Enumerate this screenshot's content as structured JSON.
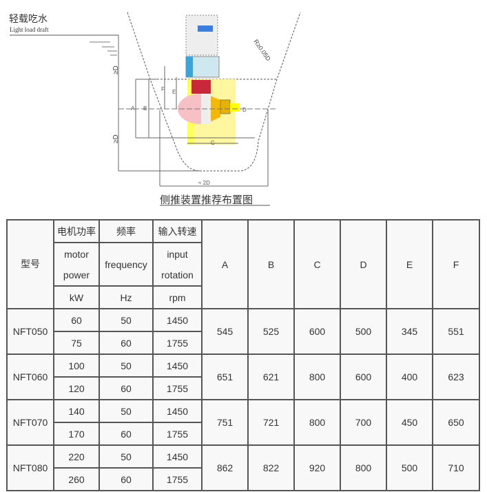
{
  "diagram": {
    "label_cn": "轻载吃水",
    "label_en": "Light load draft",
    "caption": "侧推装置推荐布置图",
    "dim_2d": "≈ 2D",
    "dim_d_top": "≥D",
    "dim_d_bottom": "≥D",
    "radius": "R≥0.05D",
    "dims": [
      "A",
      "B",
      "C",
      "D",
      "E",
      "F"
    ]
  },
  "table": {
    "header": {
      "model": "型号",
      "power_cn": "电机功率",
      "power_en_1": "motor",
      "power_en_2": "power",
      "power_unit": "kW",
      "freq_cn": "频率",
      "freq_en": "frequency",
      "freq_unit": "Hz",
      "speed_cn": "输入转速",
      "speed_en_1": "input",
      "speed_en_2": "rotation",
      "speed_unit": "rpm",
      "cols": [
        "A",
        "B",
        "C",
        "D",
        "E",
        "F"
      ]
    },
    "rows": [
      {
        "model": "NFT050",
        "variants": [
          {
            "power": "60",
            "freq": "50",
            "rpm": "1450"
          },
          {
            "power": "75",
            "freq": "60",
            "rpm": "1755"
          }
        ],
        "dims": [
          "545",
          "525",
          "600",
          "500",
          "345",
          "551"
        ]
      },
      {
        "model": "NFT060",
        "variants": [
          {
            "power": "100",
            "freq": "50",
            "rpm": "1450"
          },
          {
            "power": "120",
            "freq": "60",
            "rpm": "1755"
          }
        ],
        "dims": [
          "651",
          "621",
          "800",
          "600",
          "400",
          "623"
        ]
      },
      {
        "model": "NFT070",
        "variants": [
          {
            "power": "140",
            "freq": "50",
            "rpm": "1450"
          },
          {
            "power": "170",
            "freq": "60",
            "rpm": "1755"
          }
        ],
        "dims": [
          "751",
          "721",
          "800",
          "700",
          "450",
          "650"
        ]
      },
      {
        "model": "NFT080",
        "variants": [
          {
            "power": "220",
            "freq": "50",
            "rpm": "1450"
          },
          {
            "power": "260",
            "freq": "60",
            "rpm": "1755"
          }
        ],
        "dims": [
          "862",
          "822",
          "920",
          "800",
          "500",
          "710"
        ]
      }
    ]
  }
}
